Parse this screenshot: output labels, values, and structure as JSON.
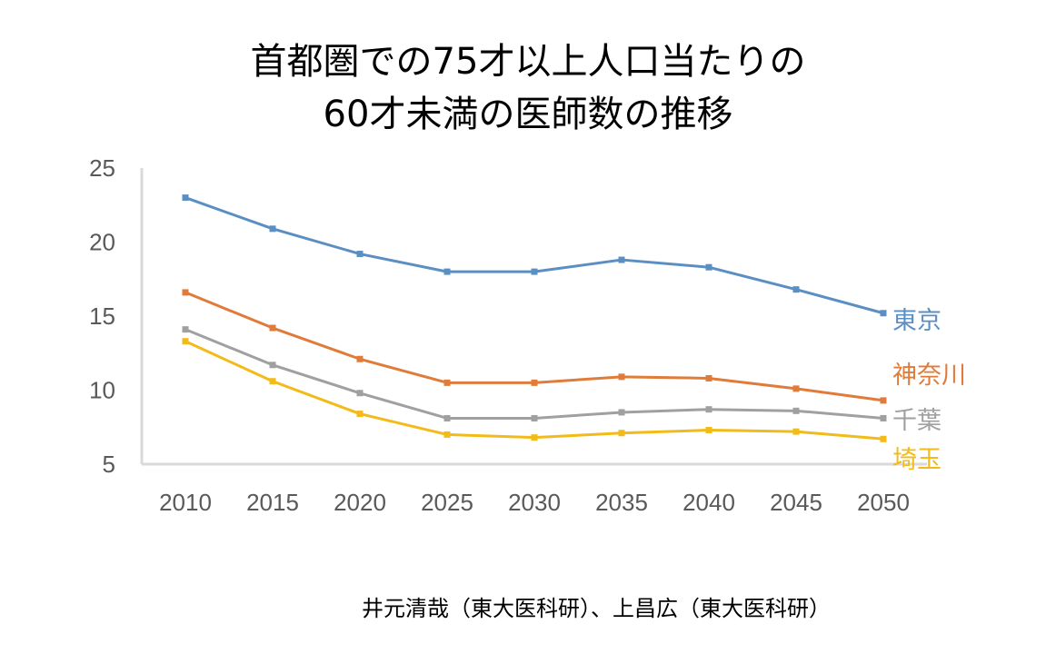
{
  "chart_data": {
    "type": "line",
    "title_lines": [
      "首都圏での75才以上人口当たりの",
      "60才未満の医師数の推移"
    ],
    "xlabel": "",
    "ylabel": "",
    "categories": [
      "2010",
      "2015",
      "2020",
      "2025",
      "2030",
      "2035",
      "2040",
      "2045",
      "2050"
    ],
    "ylim": [
      5,
      25
    ],
    "yticks": [
      "25",
      "20",
      "15",
      "10",
      "5"
    ],
    "ytick_values": [
      25,
      20,
      15,
      10,
      5
    ],
    "grid": false,
    "legend": "inline-right",
    "series": [
      {
        "name": "東京",
        "color": "#5b8fc3",
        "values": [
          23.0,
          20.9,
          19.2,
          18.0,
          18.0,
          18.8,
          18.3,
          16.8,
          15.2
        ]
      },
      {
        "name": "神奈川",
        "color": "#e07b39",
        "values": [
          16.6,
          14.2,
          12.1,
          10.5,
          10.5,
          10.9,
          10.8,
          10.1,
          9.3
        ]
      },
      {
        "name": "千葉",
        "color": "#a0a0a0",
        "values": [
          14.1,
          11.7,
          9.8,
          8.1,
          8.1,
          8.5,
          8.7,
          8.6,
          8.1
        ]
      },
      {
        "name": "埼玉",
        "color": "#f2bb1a",
        "values": [
          13.3,
          10.6,
          8.4,
          7.0,
          6.8,
          7.1,
          7.3,
          7.2,
          6.7
        ]
      }
    ]
  },
  "credit": "井元清哉（東大医科研）、上昌広（東大医科研）"
}
